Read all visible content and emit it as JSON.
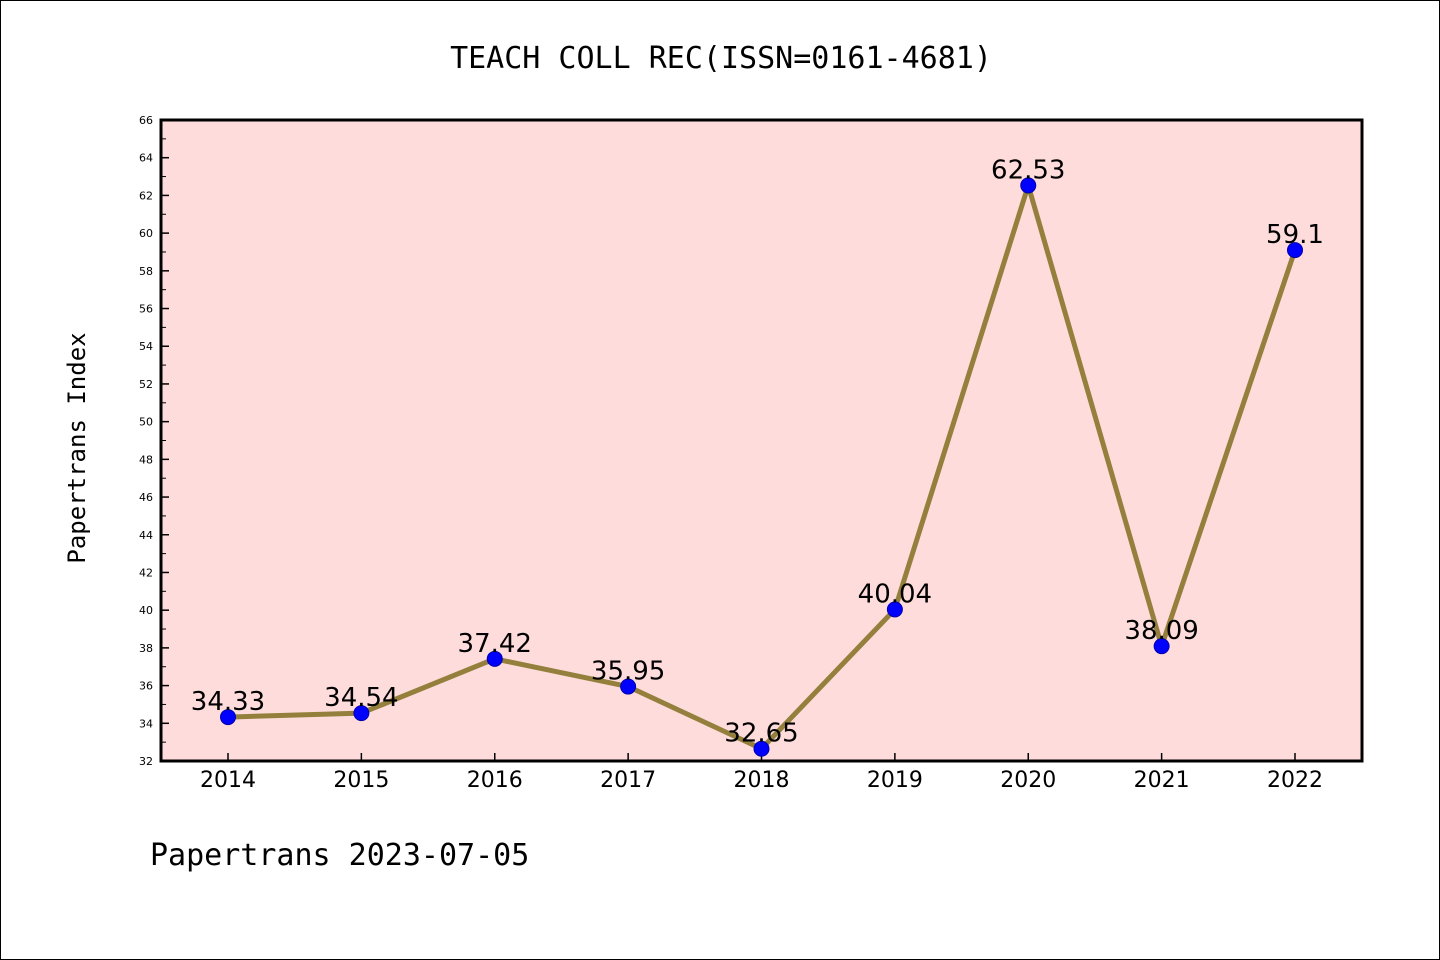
{
  "colors": {
    "plot_background": "#ffdcdc",
    "line": "#94803c",
    "marker": "#0000ff",
    "marker_edge": "#0000aa",
    "axis": "#000000"
  },
  "footer": {
    "text": "Papertrans 2023-07-05"
  },
  "chart_data": {
    "type": "line",
    "title": "TEACH COLL REC(ISSN=0161-4681)",
    "xlabel": "",
    "ylabel": "Papertrans Index",
    "categories": [
      "2014",
      "2015",
      "2016",
      "2017",
      "2018",
      "2019",
      "2020",
      "2021",
      "2022"
    ],
    "series": [
      {
        "values": [
          34.33,
          34.54,
          37.42,
          35.95,
          32.65,
          40.04,
          62.53,
          38.09,
          59.1
        ],
        "labels": [
          "34.33",
          "34.54",
          "37.42",
          "35.95",
          "32.65",
          "40.04",
          "62.53",
          "38.09",
          "59.1"
        ]
      }
    ],
    "ylim": [
      32,
      66
    ],
    "yticks": [
      32,
      34,
      36,
      38,
      40,
      42,
      44,
      46,
      48,
      50,
      52,
      54,
      56,
      58,
      60,
      62,
      64,
      66
    ],
    "grid": false,
    "legend": "none"
  }
}
